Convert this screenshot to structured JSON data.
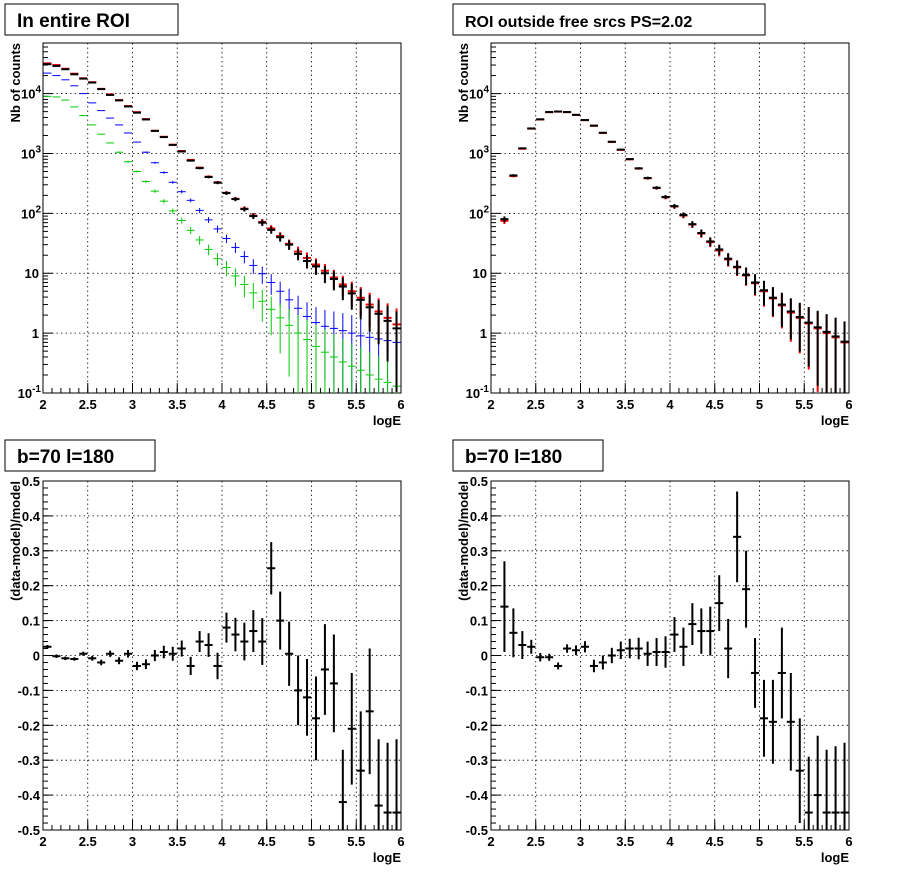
{
  "chart_data": [
    {
      "type": "scatter",
      "title": "In entire ROI",
      "xlabel": "logE",
      "ylabel": "Nb of counts",
      "xlim": [
        2,
        6
      ],
      "ylim": [
        0.1,
        70000
      ],
      "yscale": "log",
      "grid": true,
      "x_ticks": [
        "2",
        "2.5",
        "3",
        "3.5",
        "4",
        "4.5",
        "5",
        "5.5",
        "6"
      ],
      "y_ticks": [
        "10^-1",
        "1",
        "10",
        "10^2",
        "10^3",
        "10^4"
      ],
      "series": [
        {
          "color": "#ff0000",
          "x": [
            2.05,
            2.15,
            2.25,
            2.35,
            2.45,
            2.55,
            2.65,
            2.75,
            2.85,
            2.95,
            3.05,
            3.15,
            3.25,
            3.35,
            3.45,
            3.55,
            3.65,
            3.75,
            3.85,
            3.95,
            4.05,
            4.15,
            4.25,
            4.35,
            4.45,
            4.55,
            4.65,
            4.75,
            4.85,
            4.95,
            5.05,
            5.15,
            5.25,
            5.35,
            5.45,
            5.55,
            5.65,
            5.75,
            5.85,
            5.95
          ],
          "y": [
            32000,
            30000,
            26000,
            21500,
            18000,
            15500,
            12000,
            9700,
            7800,
            6200,
            4900,
            3750,
            2400,
            1900,
            1400,
            1100,
            780,
            580,
            410,
            330,
            220,
            175,
            120,
            92,
            72,
            56,
            42,
            31,
            23,
            18,
            14,
            11,
            8.5,
            6.5,
            5.0,
            3.9,
            3.0,
            2.3,
            1.8,
            1.4
          ]
        },
        {
          "color": "#0000ff",
          "x": [
            2.05,
            2.15,
            2.25,
            2.35,
            2.45,
            2.55,
            2.65,
            2.75,
            2.85,
            2.95,
            3.05,
            3.15,
            3.25,
            3.35,
            3.45,
            3.55,
            3.65,
            3.75,
            3.85,
            3.95,
            4.05,
            4.15,
            4.25,
            4.35,
            4.45,
            4.55,
            4.65,
            4.75,
            4.85,
            4.95,
            5.05,
            5.15,
            5.25,
            5.35,
            5.45,
            5.55,
            5.65,
            5.75,
            5.85,
            5.95
          ],
          "y": [
            22000,
            20000,
            17000,
            13500,
            10000,
            7000,
            5200,
            3900,
            3000,
            2200,
            1550,
            1050,
            700,
            480,
            330,
            230,
            165,
            112,
            78,
            55,
            38,
            27,
            19,
            13.5,
            9.8,
            7.0,
            5.0,
            3.6,
            2.6,
            1.9,
            1.5,
            1.3,
            1.2,
            1.1,
            1.0,
            0.9,
            0.85,
            0.8,
            0.75,
            0.7
          ]
        },
        {
          "color": "#00cc00",
          "x": [
            2.05,
            2.15,
            2.25,
            2.35,
            2.45,
            2.55,
            2.65,
            2.75,
            2.85,
            2.95,
            3.05,
            3.15,
            3.25,
            3.35,
            3.45,
            3.55,
            3.65,
            3.75,
            3.85,
            3.95,
            4.05,
            4.15,
            4.25,
            4.35,
            4.45,
            4.55,
            4.65,
            4.75,
            4.85,
            4.95,
            5.05,
            5.15,
            5.25,
            5.35,
            5.45,
            5.55,
            5.65,
            5.75,
            5.85,
            5.95
          ],
          "y": [
            9000,
            8800,
            7800,
            6000,
            4300,
            3000,
            2100,
            1500,
            1050,
            730,
            500,
            340,
            235,
            160,
            110,
            76,
            52,
            36,
            25,
            17.5,
            12.5,
            9.0,
            6.5,
            4.7,
            3.4,
            2.5,
            1.8,
            1.35,
            1.0,
            0.78,
            0.6,
            0.48,
            0.4,
            0.33,
            0.28,
            0.24,
            0.2,
            0.17,
            0.15,
            0.13
          ]
        },
        {
          "color": "#000000",
          "x": [
            2.05,
            2.15,
            2.25,
            2.35,
            2.45,
            2.55,
            2.65,
            2.75,
            2.85,
            2.95,
            3.05,
            3.15,
            3.25,
            3.35,
            3.45,
            3.55,
            3.65,
            3.75,
            3.85,
            3.95,
            4.05,
            4.15,
            4.25,
            4.35,
            4.45,
            4.55,
            4.65,
            4.75,
            4.85,
            4.95,
            5.05,
            5.15,
            5.25,
            5.35,
            5.45,
            5.55,
            5.65,
            5.75,
            5.85,
            5.95
          ],
          "y": [
            31000,
            29000,
            25500,
            21000,
            17800,
            15300,
            11900,
            9500,
            7700,
            6100,
            4800,
            3700,
            2380,
            1880,
            1390,
            1080,
            760,
            570,
            405,
            325,
            218,
            173,
            118,
            90,
            70,
            53,
            40,
            30,
            21,
            16,
            13,
            10,
            8.0,
            6.0,
            4.6,
            3.6,
            2.7,
            2.1,
            1.6,
            1.2
          ]
        }
      ]
    },
    {
      "type": "scatter",
      "title": "ROI outside free srcs PS=2.02",
      "xlabel": "logE",
      "ylabel": "Nb of counts",
      "xlim": [
        2,
        6
      ],
      "ylim": [
        0.1,
        70000
      ],
      "yscale": "log",
      "grid": true,
      "x_ticks": [
        "2",
        "2.5",
        "3",
        "3.5",
        "4",
        "4.5",
        "5",
        "5.5",
        "6"
      ],
      "y_ticks": [
        "10^-1",
        "1",
        "10",
        "10^2",
        "10^3",
        "10^4"
      ],
      "series": [
        {
          "color": "#ff0000",
          "x": [
            2.15,
            2.25,
            2.35,
            2.45,
            2.55,
            2.65,
            2.75,
            2.85,
            2.95,
            3.05,
            3.15,
            3.25,
            3.35,
            3.45,
            3.55,
            3.65,
            3.75,
            3.85,
            3.95,
            4.05,
            4.15,
            4.25,
            4.35,
            4.45,
            4.55,
            4.65,
            4.75,
            4.85,
            4.95,
            5.05,
            5.15,
            5.25,
            5.35,
            5.45,
            5.55,
            5.65,
            5.75,
            5.85,
            5.95
          ],
          "y": [
            75,
            420,
            1200,
            2600,
            3700,
            4900,
            5000,
            4900,
            4400,
            3600,
            2900,
            2200,
            1560,
            1150,
            800,
            560,
            385,
            265,
            185,
            130,
            92,
            65,
            46,
            33,
            24,
            17,
            12.5,
            9.2,
            6.8,
            5.0,
            3.8,
            2.9,
            2.2,
            1.8,
            1.45,
            1.2,
            1.0,
            0.85,
            0.7
          ]
        },
        {
          "color": "#000000",
          "x": [
            2.15,
            2.25,
            2.35,
            2.45,
            2.55,
            2.65,
            2.75,
            2.85,
            2.95,
            3.05,
            3.15,
            3.25,
            3.35,
            3.45,
            3.55,
            3.65,
            3.75,
            3.85,
            3.95,
            4.05,
            4.15,
            4.25,
            4.35,
            4.45,
            4.55,
            4.65,
            4.75,
            4.85,
            4.95,
            5.05,
            5.15,
            5.25,
            5.35,
            5.45,
            5.55,
            5.65,
            5.75,
            5.85,
            5.95
          ],
          "y": [
            80,
            430,
            1220,
            2620,
            3720,
            4920,
            5020,
            4920,
            4420,
            3620,
            2920,
            2220,
            1570,
            1160,
            805,
            565,
            390,
            268,
            188,
            132,
            94,
            66,
            47,
            34,
            25,
            17.5,
            12.8,
            9.4,
            7.0,
            5.2,
            3.9,
            3.0,
            2.3,
            1.85,
            1.5,
            1.25,
            1.05,
            0.88,
            0.72
          ]
        }
      ]
    },
    {
      "type": "scatter",
      "title": "b=70 l=180",
      "xlabel": "logE",
      "ylabel": "(data-model)/model",
      "xlim": [
        2,
        6
      ],
      "ylim": [
        -0.5,
        0.5
      ],
      "grid": true,
      "x_ticks": [
        "2",
        "2.5",
        "3",
        "3.5",
        "4",
        "4.5",
        "5",
        "5.5",
        "6"
      ],
      "y_ticks": [
        "-0.5",
        "-0.4",
        "-0.3",
        "-0.2",
        "-0.1",
        "0",
        "0.1",
        "0.2",
        "0.3",
        "0.4",
        "0.5"
      ],
      "series": [
        {
          "color": "#000000",
          "x": [
            2.05,
            2.15,
            2.25,
            2.35,
            2.45,
            2.55,
            2.65,
            2.75,
            2.85,
            2.95,
            3.05,
            3.15,
            3.25,
            3.35,
            3.45,
            3.55,
            3.65,
            3.75,
            3.85,
            3.95,
            4.05,
            4.15,
            4.25,
            4.35,
            4.45,
            4.55,
            4.65,
            4.75,
            4.85,
            4.95,
            5.05,
            5.15,
            5.25,
            5.35,
            5.45,
            5.55,
            5.65,
            5.75,
            5.85,
            5.95
          ],
          "y": [
            0.025,
            -0.002,
            -0.008,
            -0.01,
            0.005,
            -0.008,
            -0.02,
            0.005,
            -0.015,
            0.005,
            -0.03,
            -0.025,
            0.0,
            0.01,
            0.005,
            0.02,
            -0.03,
            0.04,
            0.03,
            -0.03,
            0.08,
            0.06,
            0.04,
            0.07,
            0.04,
            0.25,
            0.1,
            0.005,
            -0.1,
            -0.12,
            -0.18,
            -0.04,
            -0.08,
            -0.42,
            -0.21,
            -0.33,
            -0.16,
            -0.43,
            -0.45,
            -0.45
          ],
          "err": [
            0.005,
            0.005,
            0.005,
            0.005,
            0.006,
            0.007,
            0.008,
            0.009,
            0.01,
            0.011,
            0.012,
            0.014,
            0.016,
            0.018,
            0.02,
            0.023,
            0.026,
            0.03,
            0.034,
            0.038,
            0.043,
            0.048,
            0.054,
            0.06,
            0.067,
            0.075,
            0.083,
            0.092,
            0.1,
            0.11,
            0.12,
            0.13,
            0.14,
            0.15,
            0.16,
            0.17,
            0.18,
            0.19,
            0.2,
            0.21
          ]
        }
      ]
    },
    {
      "type": "scatter",
      "title": "b=70 l=180",
      "xlabel": "logE",
      "ylabel": "(data-model)/model",
      "xlim": [
        2,
        6
      ],
      "ylim": [
        -0.5,
        0.5
      ],
      "grid": true,
      "x_ticks": [
        "2",
        "2.5",
        "3",
        "3.5",
        "4",
        "4.5",
        "5",
        "5.5",
        "6"
      ],
      "y_ticks": [
        "-0.5",
        "-0.4",
        "-0.3",
        "-0.2",
        "-0.1",
        "0",
        "0.1",
        "0.2",
        "0.3",
        "0.4",
        "0.5"
      ],
      "series": [
        {
          "color": "#000000",
          "x": [
            2.15,
            2.25,
            2.35,
            2.45,
            2.55,
            2.65,
            2.75,
            2.85,
            2.95,
            3.05,
            3.15,
            3.25,
            3.35,
            3.45,
            3.55,
            3.65,
            3.75,
            3.85,
            3.95,
            4.05,
            4.15,
            4.25,
            4.35,
            4.45,
            4.55,
            4.65,
            4.75,
            4.85,
            4.95,
            5.05,
            5.15,
            5.25,
            5.35,
            5.45,
            5.55,
            5.65,
            5.75,
            5.85,
            5.95
          ],
          "y": [
            0.14,
            0.065,
            0.03,
            0.025,
            -0.005,
            -0.005,
            -0.03,
            0.02,
            0.015,
            0.025,
            -0.03,
            -0.02,
            0.0,
            0.015,
            0.02,
            0.02,
            0.005,
            0.01,
            0.01,
            0.06,
            0.025,
            0.09,
            0.07,
            0.07,
            0.15,
            0.02,
            0.34,
            0.19,
            -0.05,
            -0.18,
            -0.19,
            -0.05,
            -0.19,
            -0.33,
            -0.45,
            -0.4,
            -0.45,
            -0.45,
            -0.45
          ],
          "err": [
            0.13,
            0.07,
            0.04,
            0.02,
            0.012,
            0.01,
            0.01,
            0.012,
            0.014,
            0.016,
            0.018,
            0.02,
            0.022,
            0.025,
            0.028,
            0.031,
            0.035,
            0.04,
            0.045,
            0.05,
            0.055,
            0.06,
            0.065,
            0.07,
            0.08,
            0.085,
            0.13,
            0.11,
            0.1,
            0.11,
            0.12,
            0.13,
            0.14,
            0.15,
            0.16,
            0.17,
            0.18,
            0.19,
            0.2
          ]
        }
      ]
    }
  ]
}
